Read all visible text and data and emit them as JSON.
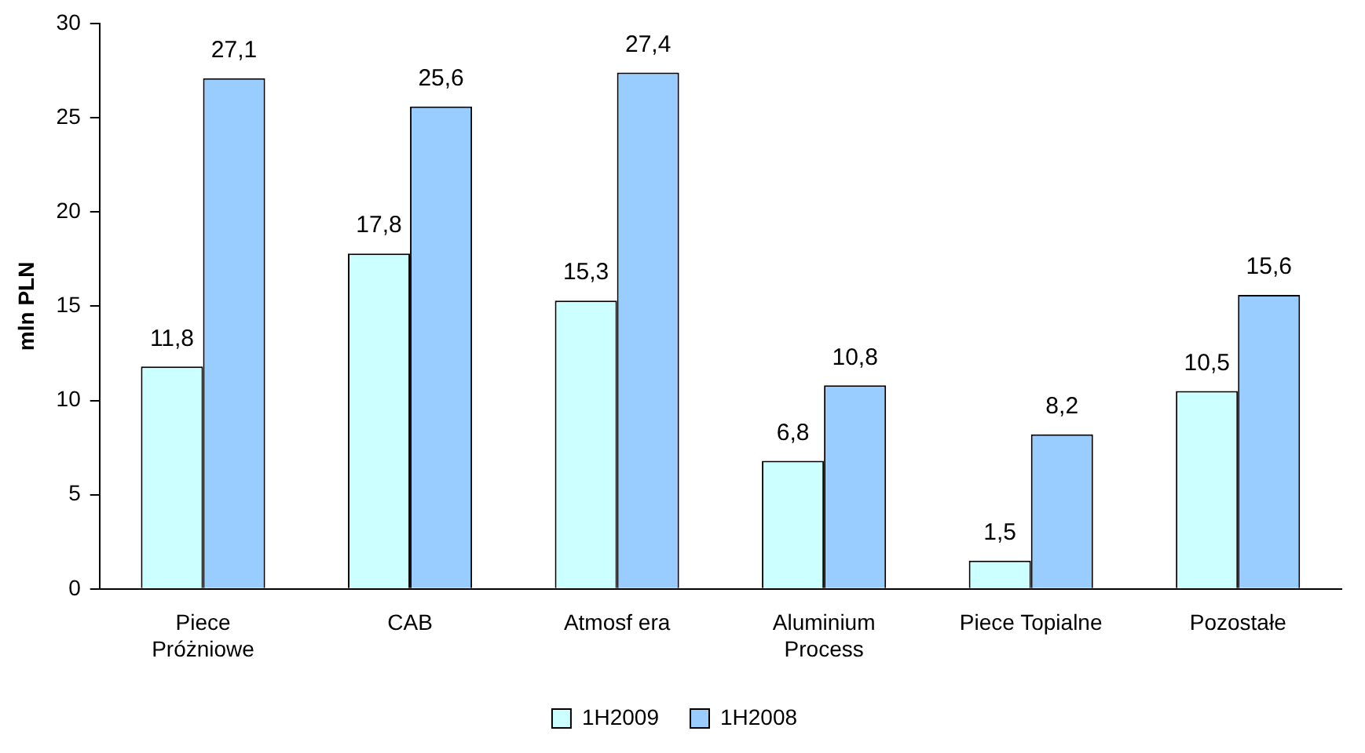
{
  "chart_data": {
    "type": "bar",
    "ylabel": "mln PLN",
    "categories": [
      "Piece\nPróżniowe",
      "CAB",
      "Atmosf era",
      "Aluminium\nProcess",
      "Piece Topialne",
      "Pozostałe"
    ],
    "series": [
      {
        "name": "1H2009",
        "color": "#ccffff",
        "values": [
          11.8,
          17.8,
          15.3,
          6.8,
          1.5,
          10.5
        ],
        "value_labels": [
          "11,8",
          "17,8",
          "15,3",
          "6,8",
          "1,5",
          "10,5"
        ]
      },
      {
        "name": "1H2008",
        "color": "#99ccff",
        "values": [
          27.1,
          25.6,
          27.4,
          10.8,
          8.2,
          15.6
        ],
        "value_labels": [
          "27,1",
          "25,6",
          "27,4",
          "10,8",
          "8,2",
          "15,6"
        ]
      }
    ],
    "ylim": [
      0,
      30
    ],
    "yticks": [
      0,
      5,
      10,
      15,
      20,
      25,
      30
    ],
    "grid": false,
    "legend": "bottom"
  }
}
